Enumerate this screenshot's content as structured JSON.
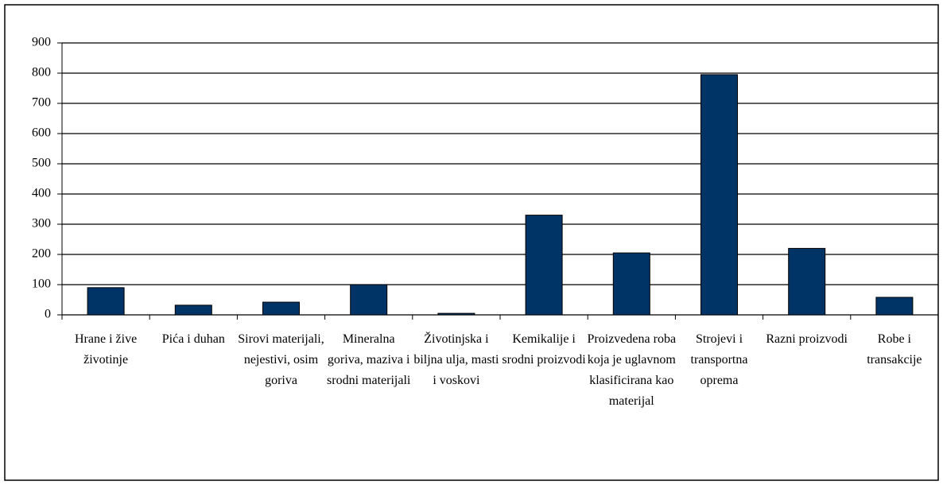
{
  "chart_data": {
    "type": "bar",
    "categories": [
      "Hrane i žive životinje",
      "Pića i duhan",
      "Sirovi materijali, nejestivi, osim goriva",
      "Mineralna goriva, maziva i srodni materijali",
      "Životinjska i biljna ulja, masti i voskovi",
      "Kemikalije i srodni proizvodi",
      "Proizvedena roba koja je uglavnom klasificirana kao materijal",
      "Strojevi i transportna oprema",
      "Razni proizvodi",
      "Robe i transakcije"
    ],
    "values": [
      90,
      32,
      42,
      100,
      5,
      330,
      205,
      795,
      220,
      58
    ],
    "color": "#003366",
    "ylim": [
      0,
      900
    ],
    "yticks": [
      0,
      100,
      200,
      300,
      400,
      500,
      600,
      700,
      800,
      900
    ],
    "grid": true
  }
}
